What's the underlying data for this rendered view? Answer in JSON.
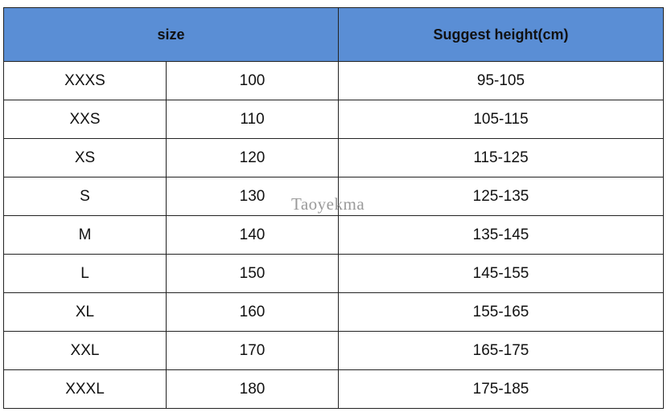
{
  "header": {
    "cells": [
      "size",
      "Suggest height(cm)"
    ]
  },
  "table": {
    "rows": [
      [
        "XXXS",
        "100",
        "95-105"
      ],
      [
        "XXS",
        "110",
        "105-115"
      ],
      [
        "XS",
        "120",
        "115-125"
      ],
      [
        "S",
        "130",
        "125-135"
      ],
      [
        "M",
        "140",
        "135-145"
      ],
      [
        "L",
        "150",
        "145-155"
      ],
      [
        "XL",
        "160",
        "155-165"
      ],
      [
        "XXL",
        "170",
        "165-175"
      ],
      [
        "XXXL",
        "180",
        "175-185"
      ]
    ]
  },
  "watermark": "Taoyekma"
}
